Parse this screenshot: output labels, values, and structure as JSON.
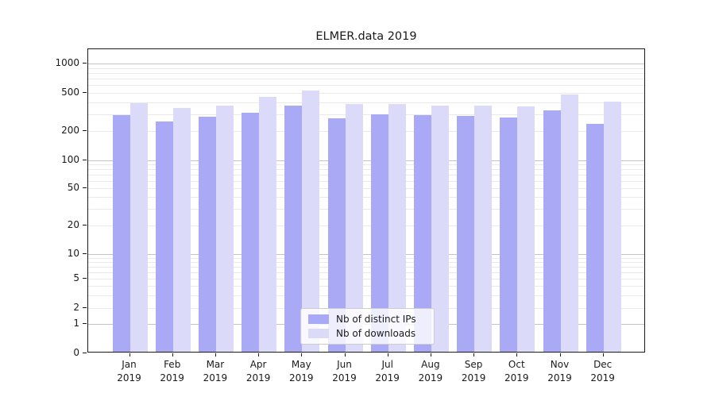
{
  "figure": {
    "background": "#ffffff",
    "axis_color": "#1a1a1a",
    "major_grid_color": "#c4c4c4",
    "minor_grid_color": "#e9e9e9"
  },
  "chart_data": {
    "type": "bar",
    "title": "ELMER.data 2019",
    "categories": [
      "Jan 2019",
      "Feb 2019",
      "Mar 2019",
      "Apr 2019",
      "May 2019",
      "Jun 2019",
      "Jul 2019",
      "Aug 2019",
      "Sep 2019",
      "Oct 2019",
      "Nov 2019",
      "Dec 2019"
    ],
    "month_labels": [
      "Jan",
      "Feb",
      "Mar",
      "Apr",
      "May",
      "Jun",
      "Jul",
      "Aug",
      "Sep",
      "Oct",
      "Nov",
      "Dec"
    ],
    "year_label": "2019",
    "series": [
      {
        "name": "Nb of distinct IPs",
        "color": "#a9a9f6",
        "values": [
          280,
          242,
          270,
          300,
          352,
          260,
          287,
          280,
          277,
          267,
          318,
          229
        ]
      },
      {
        "name": "Nb of downloads",
        "color": "#dbdbf9",
        "values": [
          375,
          335,
          358,
          440,
          512,
          370,
          370,
          358,
          358,
          350,
          460,
          392
        ]
      }
    ],
    "xlabel": "",
    "ylabel": "",
    "y_scale": "symlog",
    "y_ticks": [
      0,
      1,
      2,
      5,
      10,
      20,
      50,
      100,
      200,
      500,
      1000
    ],
    "y_tick_labels": [
      "0",
      "1",
      "2",
      "5",
      "10",
      "20",
      "50",
      "100",
      "200",
      "500",
      "1000"
    ],
    "ylim": [
      0,
      1400
    ],
    "grid": true,
    "legend_position": "lower center"
  }
}
